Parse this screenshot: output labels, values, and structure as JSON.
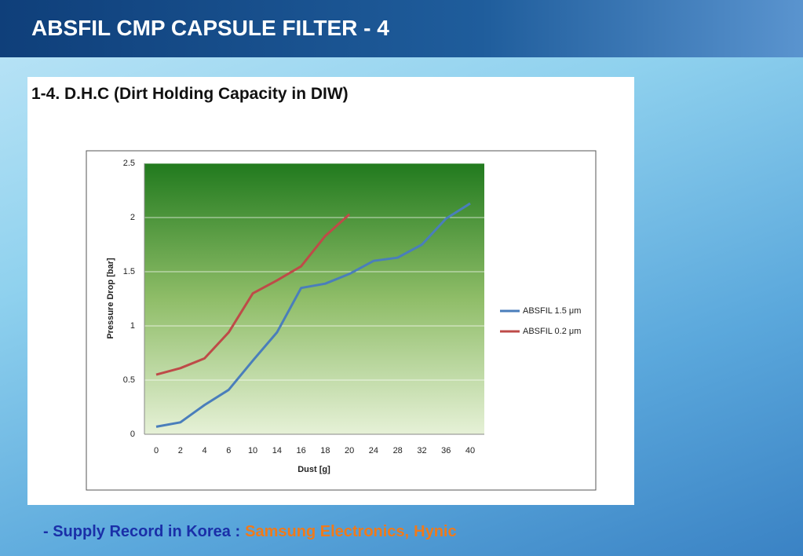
{
  "slide": {
    "title": "ABSFIL CMP CAPSULE FILTER - 4",
    "heading": "1-4. D.H.C (Dirt Holding Capacity in DIW)",
    "footer_label": "- Supply Record in Korea :",
    "footer_items": [
      "Samsung Electronics,",
      "Hynic"
    ]
  },
  "chart_data": {
    "type": "line",
    "x_label": "Dust [g]",
    "y_label": "Pressure Drop [bar]",
    "categories": [
      "0",
      "2",
      "4",
      "6",
      "10",
      "14",
      "16",
      "18",
      "20",
      "24",
      "28",
      "32",
      "36",
      "40"
    ],
    "series": [
      {
        "name": "ABSFIL 1.5 μm",
        "color": "#4a7ebb",
        "values": [
          0.07,
          0.11,
          0.27,
          0.41,
          0.68,
          0.94,
          1.35,
          1.39,
          1.48,
          1.6,
          1.63,
          1.75,
          1.99,
          2.13
        ]
      },
      {
        "name": "ABSFIL 0.2 μm",
        "color": "#be4b48",
        "values": [
          0.55,
          0.61,
          0.7,
          0.94,
          1.3,
          1.42,
          1.55,
          1.83,
          2.03,
          null,
          null,
          null,
          null,
          null
        ]
      }
    ],
    "ylim": [
      0,
      2.5
    ],
    "yticks": [
      0,
      0.5,
      1,
      1.5,
      2,
      2.5
    ],
    "grid": true,
    "legend": "right"
  }
}
